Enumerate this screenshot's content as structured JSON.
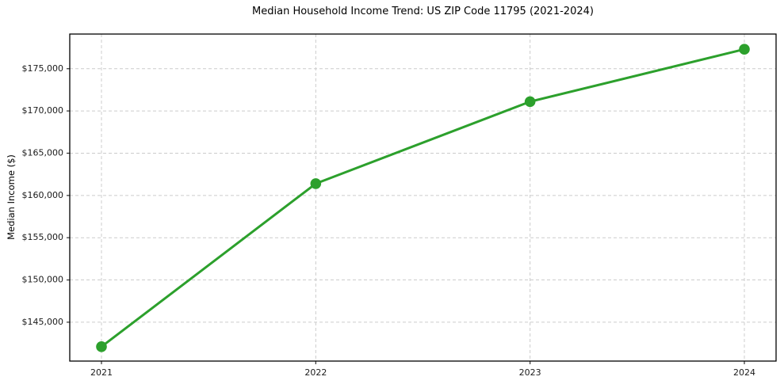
{
  "page": {
    "background": "#ffffff"
  },
  "chart_data": {
    "type": "line",
    "title": "Median Household Income Trend: US ZIP Code 11795 (2021-2024)",
    "xlabel": "",
    "ylabel": "Median Income ($)",
    "categories": [
      "2021",
      "2022",
      "2023",
      "2024"
    ],
    "series": [
      {
        "name": "Median Household Income",
        "values": [
          142100,
          161400,
          171100,
          177300
        ]
      }
    ],
    "y_ticks": [
      145000,
      150000,
      155000,
      160000,
      165000,
      170000,
      175000
    ],
    "y_tick_labels": [
      "$145,000",
      "$150,000",
      "$155,000",
      "$160,000",
      "$165,000",
      "$170,000",
      "$175,000"
    ],
    "ylim": [
      140400,
      179100
    ],
    "grid": true,
    "grid_style": "dashed",
    "legend_position": "none",
    "colors": {
      "line": "#2ca02c",
      "marker": "#2ca02c",
      "grid": "#cccccc",
      "axis_border": "#000000",
      "tick": "#333333",
      "tick_label": "#1a1a1a"
    }
  }
}
